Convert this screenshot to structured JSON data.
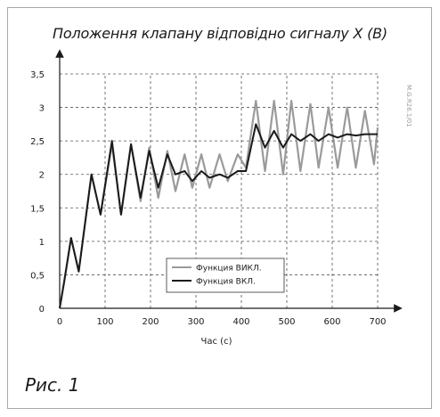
{
  "page": {
    "title": "Положення клапану відповідно сигналу X (B)",
    "caption": "Рис. 1",
    "code": "M.G.R26.1/01"
  },
  "chart_data": {
    "type": "line",
    "title": "Положення клапану відповідно сигналу X (B)",
    "xlabel": "Час (с)",
    "ylabel": "",
    "xlim": [
      0,
      700
    ],
    "ylim": [
      0,
      3.5
    ],
    "x_ticks": [
      0,
      100,
      200,
      300,
      400,
      500,
      600,
      700
    ],
    "y_ticks": [
      0,
      0.5,
      1,
      1.5,
      2,
      2.5,
      3,
      3.5
    ],
    "y_tick_labels": [
      "0",
      "0,5",
      "1",
      "1,5",
      "2",
      "2,5",
      "3",
      "3,5"
    ],
    "grid": "dashed",
    "legend_position": "bottom-center",
    "series": [
      {
        "name": "Функция ВИКЛ.",
        "color": "#9a9a9a",
        "x": [
          0,
          10,
          25,
          42,
          70,
          90,
          115,
          135,
          157,
          178,
          197,
          217,
          237,
          255,
          275,
          292,
          312,
          330,
          352,
          370,
          392,
          410,
          432,
          452,
          472,
          492,
          510,
          530,
          552,
          570,
          592,
          612,
          633,
          652,
          672,
          692,
          700
        ],
        "y": [
          0,
          0.4,
          1.05,
          0.55,
          2.0,
          1.4,
          2.45,
          1.4,
          2.45,
          1.6,
          2.4,
          1.65,
          2.35,
          1.75,
          2.3,
          1.8,
          2.3,
          1.8,
          2.3,
          1.9,
          2.3,
          2.1,
          3.1,
          2.05,
          3.1,
          2.0,
          3.1,
          2.05,
          3.05,
          2.1,
          3.0,
          2.1,
          3.0,
          2.1,
          2.95,
          2.15,
          2.7
        ]
      },
      {
        "name": "Функция ВКЛ.",
        "color": "#1a1a1a",
        "x": [
          0,
          10,
          25,
          42,
          70,
          90,
          115,
          135,
          157,
          178,
          197,
          217,
          237,
          255,
          275,
          292,
          312,
          330,
          352,
          370,
          392,
          410,
          432,
          452,
          472,
          492,
          510,
          530,
          552,
          570,
          592,
          612,
          633,
          652,
          672,
          692,
          700
        ],
        "y": [
          0,
          0.4,
          1.05,
          0.55,
          2.0,
          1.4,
          2.5,
          1.4,
          2.45,
          1.65,
          2.35,
          1.8,
          2.3,
          2.0,
          2.05,
          1.9,
          2.05,
          1.95,
          2.0,
          1.95,
          2.05,
          2.05,
          2.75,
          2.4,
          2.65,
          2.4,
          2.6,
          2.5,
          2.6,
          2.5,
          2.6,
          2.55,
          2.6,
          2.58,
          2.6,
          2.6,
          2.6
        ]
      }
    ]
  }
}
